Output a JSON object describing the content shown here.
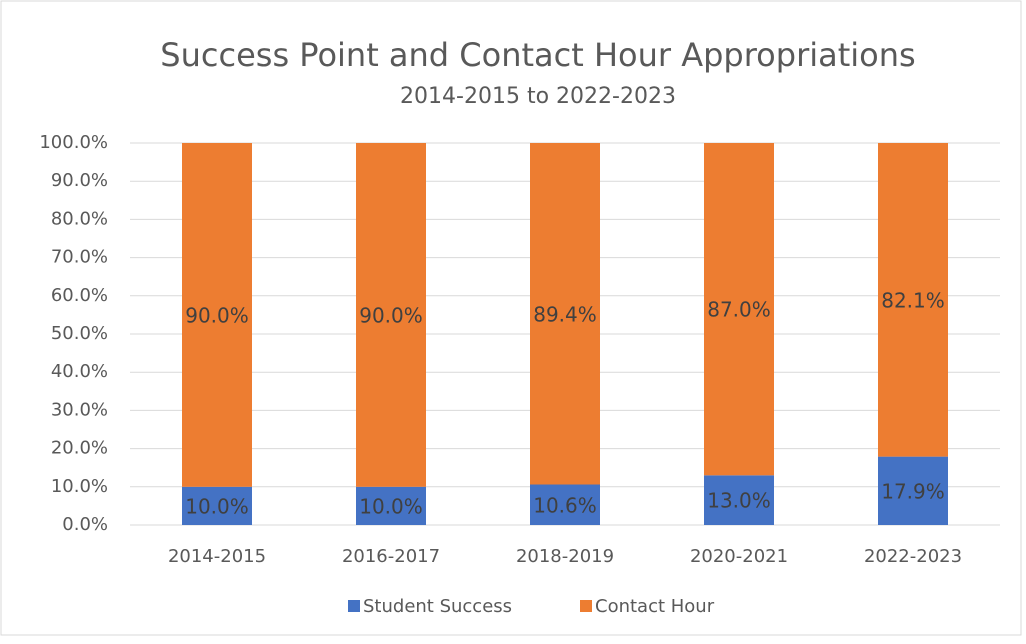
{
  "chart_data": {
    "type": "stacked_bar",
    "title": "Success Point and Contact Hour Appropriations",
    "subtitle": "2014-2015 to 2022-2023",
    "categories": [
      "2014-2015",
      "2016-2017",
      "2018-2019",
      "2020-2021",
      "2022-2023"
    ],
    "series": [
      {
        "name": "Student Success",
        "color": "#4472c4",
        "values": [
          10.0,
          10.0,
          10.6,
          13.0,
          17.9
        ],
        "value_labels": [
          "10.0%",
          "10.0%",
          "10.6%",
          "13.0%",
          "17.9%"
        ]
      },
      {
        "name": "Contact Hour",
        "color": "#ed7d31",
        "values": [
          90.0,
          90.0,
          89.4,
          87.0,
          82.1
        ],
        "value_labels": [
          "90.0%",
          "90.0%",
          "89.4%",
          "87.0%",
          "82.1%"
        ]
      }
    ],
    "ylim": [
      0,
      100
    ],
    "yticks": [
      {
        "value": 0,
        "label": "0.0%"
      },
      {
        "value": 10,
        "label": "10.0%"
      },
      {
        "value": 20,
        "label": "20.0%"
      },
      {
        "value": 30,
        "label": "30.0%"
      },
      {
        "value": 40,
        "label": "40.0%"
      },
      {
        "value": 50,
        "label": "50.0%"
      },
      {
        "value": 60,
        "label": "60.0%"
      },
      {
        "value": 70,
        "label": "70.0%"
      },
      {
        "value": 80,
        "label": "80.0%"
      },
      {
        "value": 90,
        "label": "90.0%"
      },
      {
        "value": 100,
        "label": "100.0%"
      }
    ],
    "grid": true,
    "legend": "bottom"
  }
}
